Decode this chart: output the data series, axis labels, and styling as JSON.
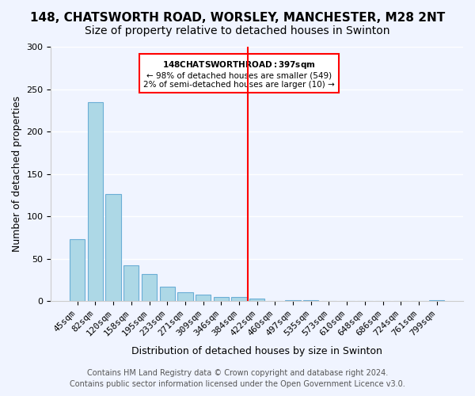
{
  "title": "148, CHATSWORTH ROAD, WORSLEY, MANCHESTER, M28 2NT",
  "subtitle": "Size of property relative to detached houses in Swinton",
  "xlabel": "Distribution of detached houses by size in Swinton",
  "ylabel": "Number of detached properties",
  "bar_labels": [
    "45sqm",
    "82sqm",
    "120sqm",
    "158sqm",
    "195sqm",
    "233sqm",
    "271sqm",
    "309sqm",
    "346sqm",
    "384sqm",
    "422sqm",
    "460sqm",
    "497sqm",
    "535sqm",
    "573sqm",
    "610sqm",
    "648sqm",
    "686sqm",
    "724sqm",
    "761sqm",
    "799sqm"
  ],
  "bar_values": [
    73,
    235,
    126,
    42,
    32,
    17,
    11,
    8,
    5,
    5,
    3,
    0,
    1,
    1,
    0,
    0,
    0,
    0,
    0,
    0,
    1
  ],
  "bar_color": "#add8e6",
  "bar_edge_color": "#6baed6",
  "vline_x": 9.5,
  "vline_color": "red",
  "annotation_title": "148 CHATSWORTH ROAD: 397sqm",
  "annotation_line1": "← 98% of detached houses are smaller (549)",
  "annotation_line2": "2% of semi-detached houses are larger (10) →",
  "annotation_box_color": "#ffffff",
  "annotation_border_color": "red",
  "ylim": [
    0,
    300
  ],
  "yticks": [
    0,
    50,
    100,
    150,
    200,
    250,
    300
  ],
  "footer_line1": "Contains HM Land Registry data © Crown copyright and database right 2024.",
  "footer_line2": "Contains public sector information licensed under the Open Government Licence v3.0.",
  "background_color": "#f0f4ff",
  "grid_color": "#ffffff",
  "title_fontsize": 11,
  "subtitle_fontsize": 10,
  "axis_label_fontsize": 9,
  "tick_fontsize": 8,
  "footer_fontsize": 7
}
